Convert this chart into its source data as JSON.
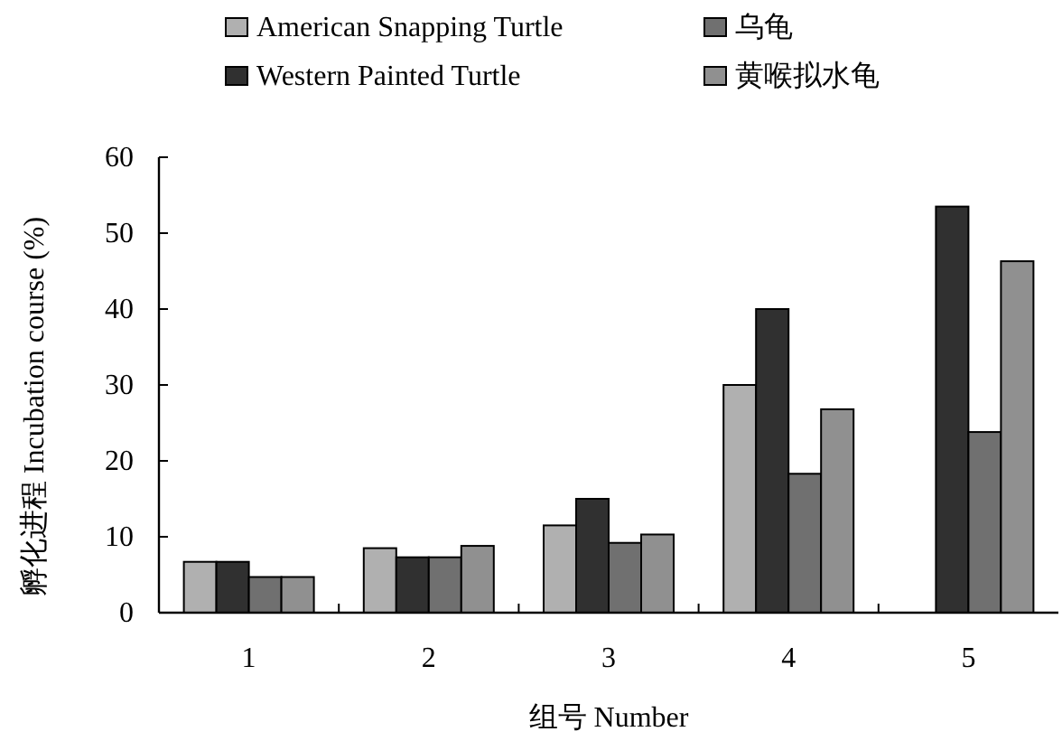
{
  "chart_data": {
    "type": "bar",
    "xlabel": "组号 Number",
    "ylabel": "孵化进程 Incubation course (%)",
    "categories": [
      "1",
      "2",
      "3",
      "4",
      "5"
    ],
    "series": [
      {
        "name": "American Snapping Turtle",
        "color": "#b0b0b0",
        "values": [
          6.7,
          8.5,
          11.5,
          30,
          null
        ]
      },
      {
        "name": "Western Painted Turtle",
        "color": "#303030",
        "values": [
          6.7,
          7.3,
          15,
          40,
          53.5
        ]
      },
      {
        "name": "乌龟",
        "color": "#707070",
        "values": [
          4.7,
          7.3,
          9.2,
          18.3,
          23.8
        ]
      },
      {
        "name": "黄喉拟水龟",
        "color": "#909090",
        "values": [
          4.7,
          8.8,
          10.3,
          26.8,
          46.3
        ]
      }
    ],
    "ylim": [
      0,
      60
    ],
    "yticks": [
      0,
      10,
      20,
      30,
      40,
      50,
      60
    ],
    "grid": false,
    "legend": "top"
  }
}
